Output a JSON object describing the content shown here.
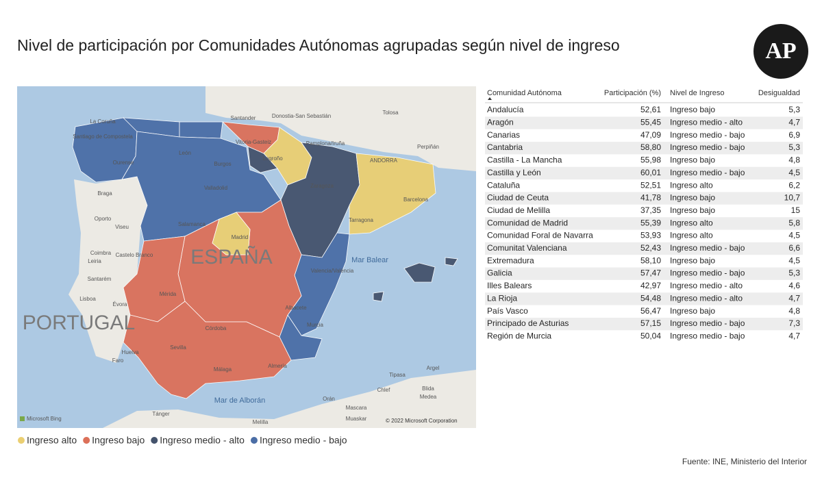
{
  "header": {
    "title": "Nivel de participación por Comunidades Autónomas agrupadas según nivel de ingreso",
    "logo": "AP"
  },
  "map": {
    "labels": [
      "La Coruña",
      "Santiago de Compostela",
      "Ourense",
      "León",
      "Santander",
      "Burgos",
      "Vitoria-Gasteiz",
      "Donostia-San Sebastián",
      "Logroño",
      "Pamplona/Iruña",
      "Tolosa",
      "Perpiñán",
      "ANDORRA",
      "Zaragoza",
      "Barcelona",
      "Tarragona",
      "Valladolid",
      "Braga",
      "Oporto",
      "Viseu",
      "Salamanca",
      "Madrid",
      "ESPAÑA",
      "Coimbra",
      "Leiria",
      "Castelo Branco",
      "Santarém",
      "Lisboa",
      "Évora",
      "PORTUGAL",
      "Mérida",
      "Córdoba",
      "Sevilla",
      "Huelva",
      "Faro",
      "Málaga",
      "Almería",
      "Murcia",
      "Albacete",
      "Valencia/València",
      "Mar Balear",
      "Mar de Alborán",
      "Tánger",
      "Tipasa",
      "Argel",
      "Chlef",
      "Blida",
      "Medea",
      "Orán",
      "Mascara",
      "Muaskar",
      "Melilla"
    ],
    "attribution": [
      "Microsoft Bing",
      "© 2022 Microsoft Corporation"
    ]
  },
  "legend": {
    "items": [
      {
        "label": "Ingreso alto",
        "color": "#ebcf72"
      },
      {
        "label": "Ingreso bajo",
        "color": "#dc7059"
      },
      {
        "label": "Ingreso medio - alto",
        "color": "#44536c"
      },
      {
        "label": "Ingreso medio - bajo",
        "color": "#4b6ea6"
      }
    ]
  },
  "table": {
    "columns": [
      "Comunidad Autónoma",
      "Participación (%)",
      "Nivel de Ingreso",
      "Desigualdad"
    ],
    "rows": [
      [
        "Andalucía",
        "52,61",
        "Ingreso bajo",
        "5,3"
      ],
      [
        "Aragón",
        "55,45",
        "Ingreso medio - alto",
        "4,7"
      ],
      [
        "Canarias",
        "47,09",
        "Ingreso medio - bajo",
        "6,9"
      ],
      [
        "Cantabria",
        "58,80",
        "Ingreso medio - bajo",
        "5,3"
      ],
      [
        "Castilla - La Mancha",
        "55,98",
        "Ingreso bajo",
        "4,8"
      ],
      [
        "Castilla y León",
        "60,01",
        "Ingreso medio - bajo",
        "4,5"
      ],
      [
        "Cataluña",
        "52,51",
        "Ingreso alto",
        "6,2"
      ],
      [
        "Ciudad de Ceuta",
        "41,78",
        "Ingreso bajo",
        "10,7"
      ],
      [
        "Ciudad de Melilla",
        "37,35",
        "Ingreso bajo",
        "15"
      ],
      [
        "Comunidad de Madrid",
        "55,39",
        "Ingreso alto",
        "5,8"
      ],
      [
        "Comunidad Foral de Navarra",
        "53,93",
        "Ingreso alto",
        "4,5"
      ],
      [
        "Comunitat Valenciana",
        "52,43",
        "Ingreso medio - bajo",
        "6,6"
      ],
      [
        "Extremadura",
        "58,10",
        "Ingreso bajo",
        "4,5"
      ],
      [
        "Galicia",
        "57,47",
        "Ingreso medio - bajo",
        "5,3"
      ],
      [
        "Illes Balears",
        "42,97",
        "Ingreso medio - alto",
        "4,6"
      ],
      [
        "La Rioja",
        "54,48",
        "Ingreso medio - alto",
        "4,7"
      ],
      [
        "País Vasco",
        "56,47",
        "Ingreso bajo",
        "4,8"
      ],
      [
        "Principado de Asturias",
        "57,15",
        "Ingreso medio - bajo",
        "7,3"
      ],
      [
        "Región de Murcia",
        "50,04",
        "Ingreso medio - bajo",
        "4,7"
      ]
    ]
  },
  "footer": {
    "source": "Fuente: INE, Ministerio del Interior"
  }
}
